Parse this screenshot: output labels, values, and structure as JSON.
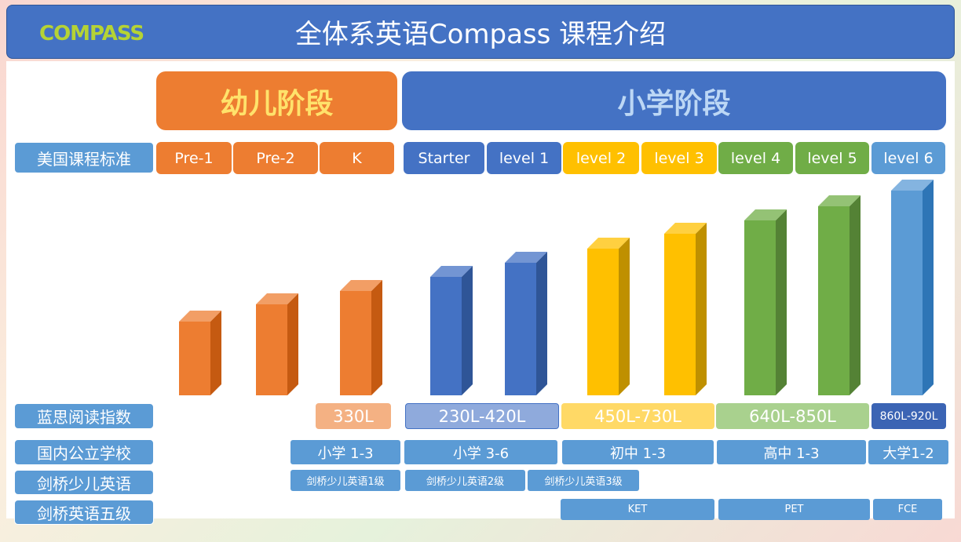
{
  "header": {
    "title": "全体系英语Compass 课程介绍",
    "logo": "COMPASS"
  },
  "stages": [
    "幼儿阶段",
    "小学阶段"
  ],
  "rows": [
    {
      "label": "美国课程标准",
      "cells": [
        "Pre-1",
        "Pre-2",
        "K",
        "Starter",
        "level 1",
        "level 2",
        "level 3",
        "level 4",
        "level 5",
        "level 6"
      ]
    },
    {
      "label": "蓝思阅读指数",
      "cells": [
        "330L",
        "230L-420L",
        "450L-730L",
        "640L-850L",
        "860L-920L"
      ]
    },
    {
      "label": "国内公立学校",
      "cells": [
        "小学 1-3",
        "小学 3-6",
        "初中 1-3",
        "高中 1-3",
        "大学1-2"
      ]
    },
    {
      "label": "剑桥少儿英语",
      "cells": [
        "剑桥少儿英语1级",
        "剑桥少儿英语2级",
        "剑桥少儿英语3级"
      ]
    },
    {
      "label": "剑桥英语五级",
      "cells": [
        "KET",
        "PET",
        "FCE"
      ]
    }
  ]
}
